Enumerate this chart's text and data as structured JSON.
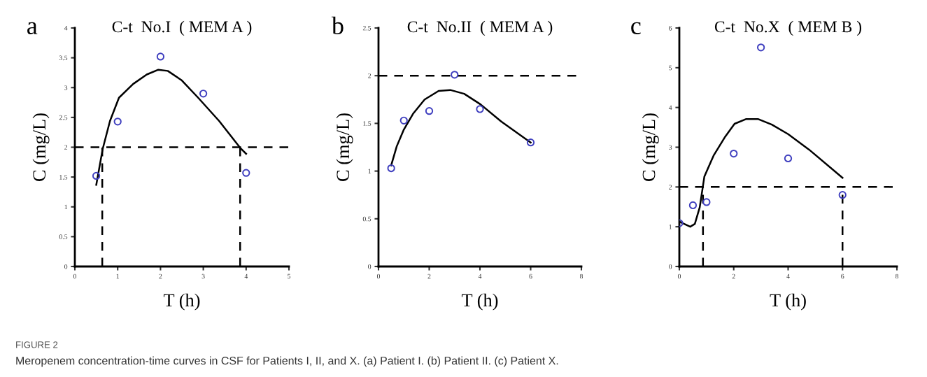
{
  "chart_data": [
    {
      "type": "scatter",
      "title": "C-t  No.I  ( MEM A )",
      "xlabel": "T (h)",
      "ylabel": "C (mg/L)",
      "xlim": [
        0,
        5
      ],
      "ylim": [
        0,
        4
      ],
      "xticks": [
        0,
        1,
        2,
        3,
        4,
        5
      ],
      "yticks": [
        0,
        0.5,
        1,
        1.5,
        2,
        2.5,
        3,
        3.5,
        4
      ],
      "grid": false,
      "legend": false,
      "annotations": [
        "a",
        "FIGURE 2",
        "Meropenem concentration-time curves in CSF for Patients I, II, and X. (a) Patient I. (b) Patient II. (c) Patient X."
      ],
      "ref_lines": [
        {
          "axis": "y",
          "value": 2,
          "color": "#000000",
          "line_style": "dashed"
        }
      ],
      "series": [
        {
          "marker": "circle",
          "color": "#3f3fbf",
          "x": [
            0.5,
            1,
            2,
            3,
            4
          ],
          "values": [
            1.52,
            2.43,
            3.52,
            2.9,
            1.57
          ]
        },
        {
          "type": "line",
          "marker": "none",
          "line_style": "solid",
          "color": "#000000",
          "x": [
            0.5,
            0.65,
            0.82,
            1.03,
            1.36,
            1.68,
            1.95,
            2.17,
            2.5,
            2.88,
            3.37,
            3.86,
            4.0
          ],
          "values": [
            1.37,
            1.97,
            2.44,
            2.83,
            3.06,
            3.22,
            3.3,
            3.28,
            3.12,
            2.83,
            2.44,
            1.99,
            1.89
          ]
        },
        {
          "type": "line",
          "marker": "none",
          "line_style": "dashed",
          "color": "#000000",
          "x": [
            0.64,
            0.64
          ],
          "values": [
            0,
            2
          ]
        },
        {
          "type": "line",
          "marker": "none",
          "line_style": "dashed",
          "color": "#000000",
          "x": [
            3.86,
            3.86
          ],
          "values": [
            0,
            2
          ]
        }
      ]
    },
    {
      "type": "scatter",
      "title": "C-t  No.II  ( MEM A )",
      "xlabel": "T (h)",
      "ylabel": "C (mg/L)",
      "xlim": [
        0,
        8
      ],
      "ylim": [
        0,
        2.5
      ],
      "xticks": [
        0,
        2,
        4,
        6,
        8
      ],
      "yticks": [
        0,
        0.5,
        1,
        1.5,
        2,
        2.5
      ],
      "grid": false,
      "legend": false,
      "annotations": [
        "b"
      ],
      "ref_lines": [
        {
          "axis": "y",
          "value": 2,
          "color": "#000000",
          "line_style": "dashed"
        }
      ],
      "series": [
        {
          "marker": "circle",
          "color": "#3f3fbf",
          "x": [
            0.5,
            1,
            2,
            3,
            4,
            6
          ],
          "values": [
            1.03,
            1.53,
            1.63,
            2.01,
            1.65,
            1.3
          ]
        },
        {
          "type": "line",
          "marker": "none",
          "line_style": "solid",
          "color": "#000000",
          "x": [
            0.5,
            0.72,
            0.99,
            1.36,
            1.82,
            2.37,
            2.83,
            3.38,
            4.02,
            4.84,
            6
          ],
          "values": [
            1.06,
            1.26,
            1.43,
            1.6,
            1.75,
            1.84,
            1.85,
            1.81,
            1.7,
            1.52,
            1.3
          ]
        }
      ]
    },
    {
      "type": "scatter",
      "title": "C-t  No.X  ( MEM B )",
      "xlabel": "T (h)",
      "ylabel": "C (mg/L)",
      "xlim": [
        0,
        8
      ],
      "ylim": [
        0,
        6
      ],
      "xticks": [
        0,
        2,
        4,
        6,
        8
      ],
      "yticks": [
        0,
        1,
        2,
        3,
        4,
        5,
        6
      ],
      "grid": false,
      "legend": false,
      "annotations": [
        "c"
      ],
      "ref_lines": [
        {
          "axis": "y",
          "value": 2,
          "color": "#000000",
          "line_style": "dashed"
        }
      ],
      "series": [
        {
          "marker": "circle",
          "color": "#3f3fbf",
          "x": [
            0,
            0.5,
            1,
            2,
            3,
            4,
            6
          ],
          "values": [
            1.09,
            1.54,
            1.62,
            2.84,
            5.51,
            2.72,
            1.8
          ]
        },
        {
          "type": "line",
          "marker": "none",
          "line_style": "solid",
          "color": "#000000",
          "x": [
            0,
            0.4,
            0.57,
            0.75,
            0.92,
            1.26,
            1.69,
            2.03,
            2.46,
            2.89,
            3.4,
            4.0,
            4.77,
            6
          ],
          "values": [
            1.13,
            1.0,
            1.07,
            1.49,
            2.26,
            2.79,
            3.27,
            3.59,
            3.71,
            3.71,
            3.57,
            3.33,
            2.94,
            2.23
          ]
        },
        {
          "type": "line",
          "marker": "none",
          "line_style": "dashed",
          "color": "#000000",
          "x": [
            0.87,
            0.87
          ],
          "values": [
            0,
            2
          ]
        },
        {
          "type": "line",
          "marker": "none",
          "line_style": "dashed",
          "color": "#000000",
          "x": [
            6,
            6
          ],
          "values": [
            0,
            2
          ]
        }
      ]
    }
  ]
}
